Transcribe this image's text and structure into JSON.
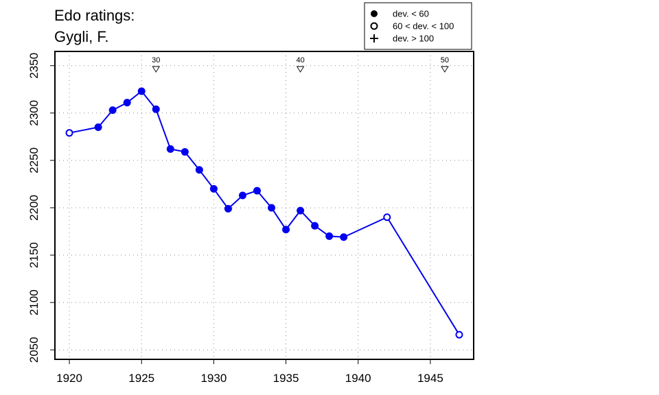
{
  "chart_data": {
    "type": "line",
    "title_line1": "Edo ratings:",
    "title_line2": "Gygli, F.",
    "xlabel": "",
    "ylabel": "",
    "xlim": [
      1919,
      1948
    ],
    "ylim": [
      2040,
      2365
    ],
    "x_ticks": [
      1920,
      1925,
      1930,
      1935,
      1940,
      1945
    ],
    "y_ticks": [
      2050,
      2100,
      2150,
      2200,
      2250,
      2300,
      2350
    ],
    "grid": true,
    "line_color": "#0000ee",
    "points": [
      {
        "x": 1920,
        "y": 2279,
        "marker": "open"
      },
      {
        "x": 1922,
        "y": 2285,
        "marker": "filled"
      },
      {
        "x": 1923,
        "y": 2303,
        "marker": "filled"
      },
      {
        "x": 1924,
        "y": 2311,
        "marker": "filled"
      },
      {
        "x": 1925,
        "y": 2323,
        "marker": "filled"
      },
      {
        "x": 1926,
        "y": 2304,
        "marker": "filled"
      },
      {
        "x": 1927,
        "y": 2262,
        "marker": "filled"
      },
      {
        "x": 1928,
        "y": 2259,
        "marker": "filled"
      },
      {
        "x": 1929,
        "y": 2240,
        "marker": "filled"
      },
      {
        "x": 1930,
        "y": 2220,
        "marker": "filled"
      },
      {
        "x": 1931,
        "y": 2199,
        "marker": "filled"
      },
      {
        "x": 1932,
        "y": 2213,
        "marker": "filled"
      },
      {
        "x": 1933,
        "y": 2218,
        "marker": "filled"
      },
      {
        "x": 1934,
        "y": 2200,
        "marker": "filled"
      },
      {
        "x": 1935,
        "y": 2177,
        "marker": "filled"
      },
      {
        "x": 1936,
        "y": 2197,
        "marker": "filled"
      },
      {
        "x": 1937,
        "y": 2181,
        "marker": "filled"
      },
      {
        "x": 1938,
        "y": 2170,
        "marker": "filled"
      },
      {
        "x": 1939,
        "y": 2169,
        "marker": "filled"
      },
      {
        "x": 1942,
        "y": 2190,
        "marker": "open"
      },
      {
        "x": 1947,
        "y": 2066,
        "marker": "open"
      }
    ],
    "age_markers": [
      {
        "label": "30",
        "x": 1926
      },
      {
        "label": "40",
        "x": 1936
      },
      {
        "label": "50",
        "x": 1946
      }
    ],
    "legend": {
      "placement": "top-right",
      "entries": [
        {
          "label": "dev. < 60",
          "marker": "filled"
        },
        {
          "label": "60 < dev. < 100",
          "marker": "open"
        },
        {
          "label": "dev. > 100",
          "marker": "plus"
        }
      ]
    }
  }
}
